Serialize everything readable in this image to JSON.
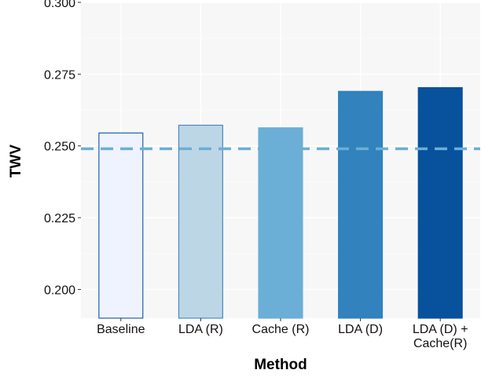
{
  "chart_data": {
    "type": "bar",
    "title": "",
    "xlabel": "Method",
    "ylabel": "TWV",
    "categories": [
      [
        "Baseline"
      ],
      [
        "LDA (R)"
      ],
      [
        "Cache (R)"
      ],
      [
        "LDA (D)"
      ],
      [
        "LDA (D) +",
        "Cache(R)"
      ]
    ],
    "values": [
      0.2545,
      0.2572,
      0.2563,
      0.269,
      0.2703
    ],
    "bar_fill": [
      "#eef3ff",
      "#bdd6e6",
      "#6baed6",
      "#3182bd",
      "#08519c"
    ],
    "bar_stroke": [
      "#2060a8",
      "#4a88c0",
      "#6baed6",
      "#3182bd",
      "#08519c"
    ],
    "ylim": [
      0.19,
      0.3
    ],
    "yticks": [
      "0.200",
      "0.225",
      "0.250",
      "0.275",
      "0.300"
    ],
    "reference_line": {
      "value": 0.249,
      "style": "dashed",
      "color": "#6baed6"
    },
    "grid": true,
    "panel_color": "#f7f7f7",
    "legend": "none"
  }
}
